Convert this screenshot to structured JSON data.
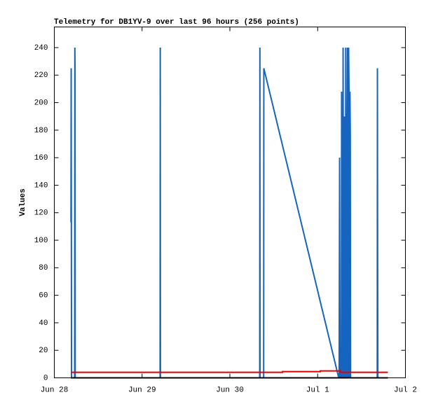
{
  "chart_data": {
    "type": "line",
    "title": "Telemetry for DB1YV-9 over last 96 hours (256 points)",
    "y_label": "Values",
    "xlim": [
      0,
      4
    ],
    "xticks": [
      {
        "value": 0,
        "label": "Jun 28"
      },
      {
        "value": 1,
        "label": "Jun 29"
      },
      {
        "value": 2,
        "label": "Jun 30"
      },
      {
        "value": 3,
        "label": "Jul 1"
      },
      {
        "value": 4,
        "label": "Jul 2"
      }
    ],
    "ylim": [
      0,
      255
    ],
    "yticks": [
      0,
      20,
      40,
      60,
      80,
      100,
      120,
      140,
      160,
      180,
      200,
      220,
      240
    ],
    "series": [
      {
        "color": "#1565c0",
        "x": [
          0.19,
          0.192,
          0.194,
          0.196,
          0.232,
          0.234,
          0.236,
          0.238,
          1.205,
          1.207,
          1.209,
          2.34,
          2.342,
          2.344,
          2.385,
          2.387,
          3.24,
          3.245,
          3.25,
          3.255,
          3.27,
          3.273,
          3.278,
          3.288,
          3.29,
          3.295,
          3.303,
          3.305,
          3.31,
          3.318,
          3.32,
          3.325,
          3.333,
          3.337,
          3.34,
          3.345,
          3.35,
          3.353,
          3.36,
          3.365,
          3.368,
          3.372,
          3.375,
          3.679,
          3.681,
          3.683,
          3.686
        ],
        "values": [
          113,
          225,
          128,
          0,
          0,
          240,
          225,
          0,
          0,
          240,
          0,
          0,
          240,
          0,
          0,
          225,
          0,
          0,
          160,
          0,
          0,
          208,
          0,
          0,
          240,
          0,
          0,
          190,
          0,
          0,
          240,
          0,
          0,
          192,
          240,
          0,
          0,
          240,
          192,
          0,
          208,
          176,
          0,
          0,
          225,
          112,
          0
        ]
      },
      {
        "color": "#e00000",
        "x": [
          0.19,
          2.6,
          2.6,
          3.03,
          3.03,
          3.26,
          3.26,
          3.8
        ],
        "values": [
          4,
          4,
          4.5,
          4.5,
          5,
          5,
          4,
          4
        ]
      },
      {
        "color": "#000000",
        "x": [
          0.19,
          3.8
        ],
        "values": [
          0,
          0
        ]
      }
    ]
  }
}
